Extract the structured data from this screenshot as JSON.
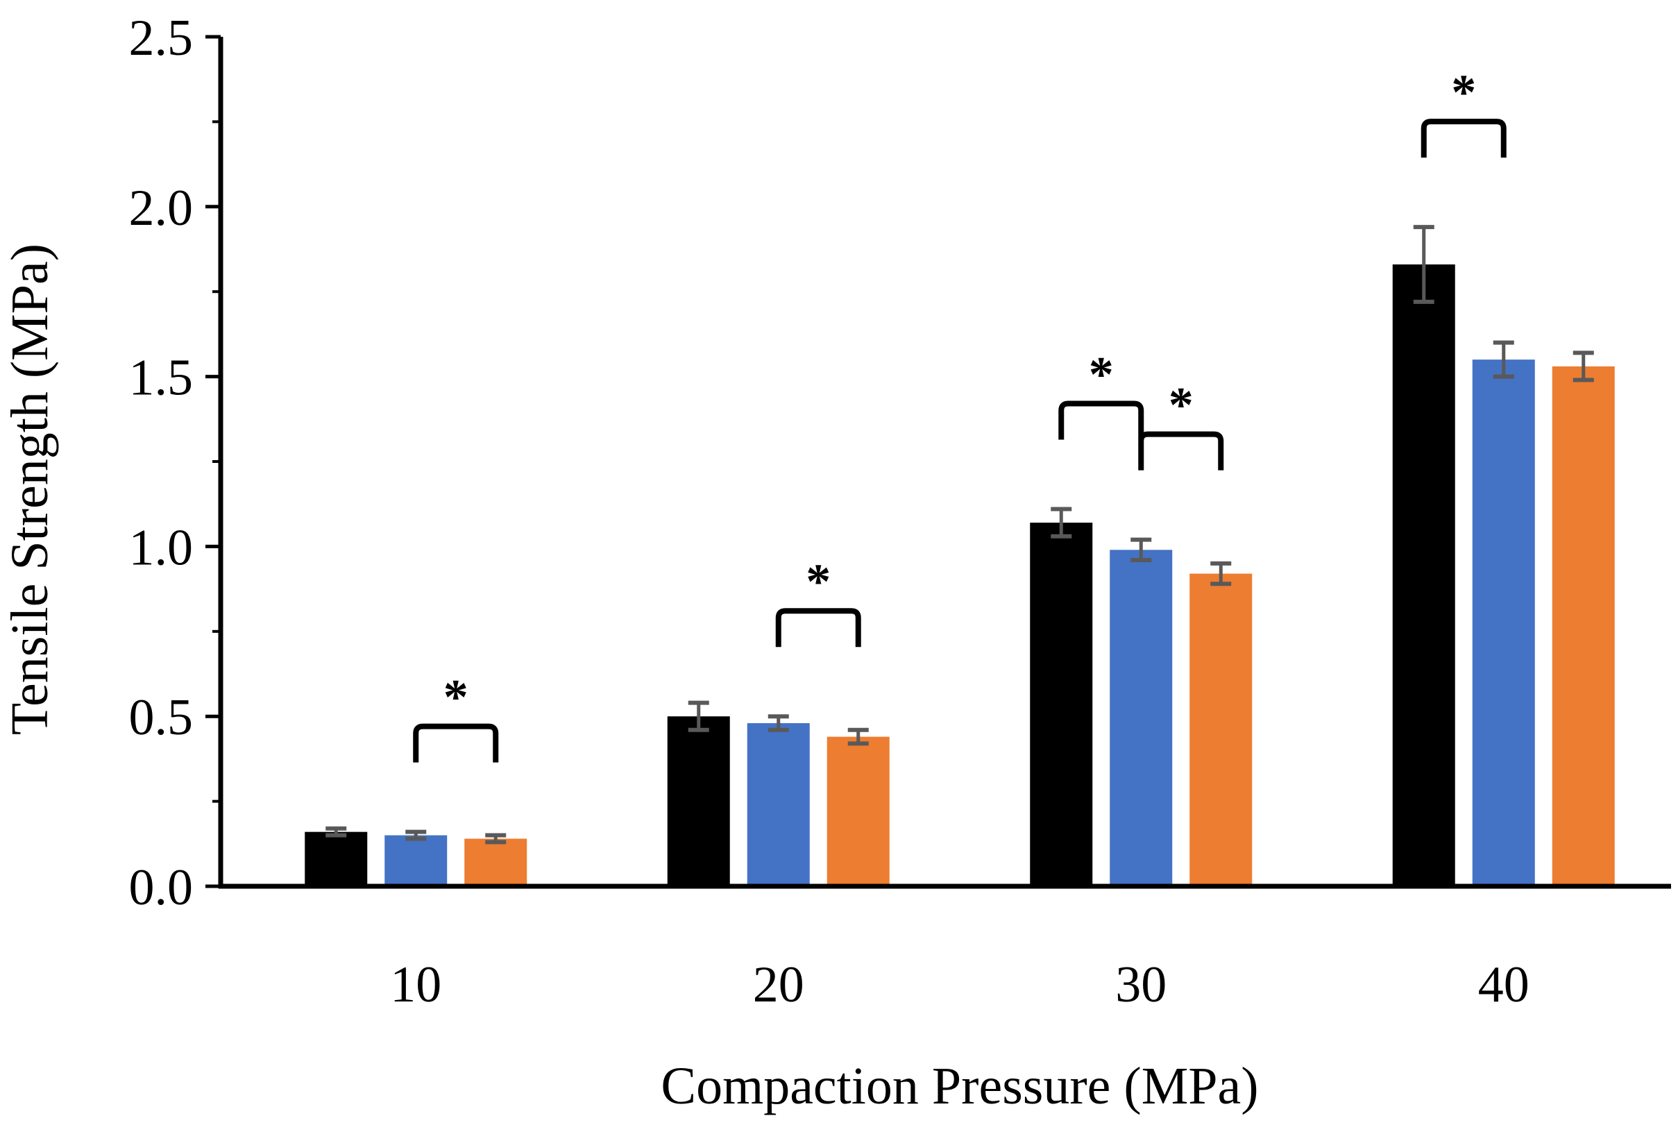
{
  "chart_data": {
    "type": "bar",
    "title": "",
    "xlabel": "Compaction Pressure (MPa)",
    "ylabel": "Tensile Strength (MPa)",
    "categories": [
      "10",
      "20",
      "30",
      "40"
    ],
    "ylim": [
      0,
      2.5
    ],
    "yticks": [
      "0.0",
      "0.5",
      "1.0",
      "1.5",
      "2.0",
      "2.5"
    ],
    "grid": false,
    "legend": "none",
    "series": [
      {
        "color": "#000000",
        "values": [
          0.16,
          0.5,
          1.07,
          1.83
        ],
        "errors": [
          0.01,
          0.04,
          0.04,
          0.11
        ]
      },
      {
        "color": "#4472C4",
        "values": [
          0.15,
          0.48,
          0.99,
          1.55
        ],
        "errors": [
          0.01,
          0.02,
          0.03,
          0.05
        ]
      },
      {
        "color": "#ED7D31",
        "values": [
          0.14,
          0.44,
          0.92,
          1.53
        ],
        "errors": [
          0.01,
          0.02,
          0.03,
          0.04
        ]
      }
    ],
    "errorbar_color": "#595959",
    "significance": [
      {
        "category": 0,
        "from_series": 1,
        "to_series": 2,
        "label": "*"
      },
      {
        "category": 1,
        "from_series": 1,
        "to_series": 2,
        "label": "*"
      },
      {
        "category": 2,
        "from_series": 0,
        "to_series": 1,
        "label": "*"
      },
      {
        "category": 2,
        "from_series": 1,
        "to_series": 2,
        "label": "*"
      },
      {
        "category": 3,
        "from_series": 0,
        "to_series": 1,
        "label": "*"
      }
    ]
  }
}
